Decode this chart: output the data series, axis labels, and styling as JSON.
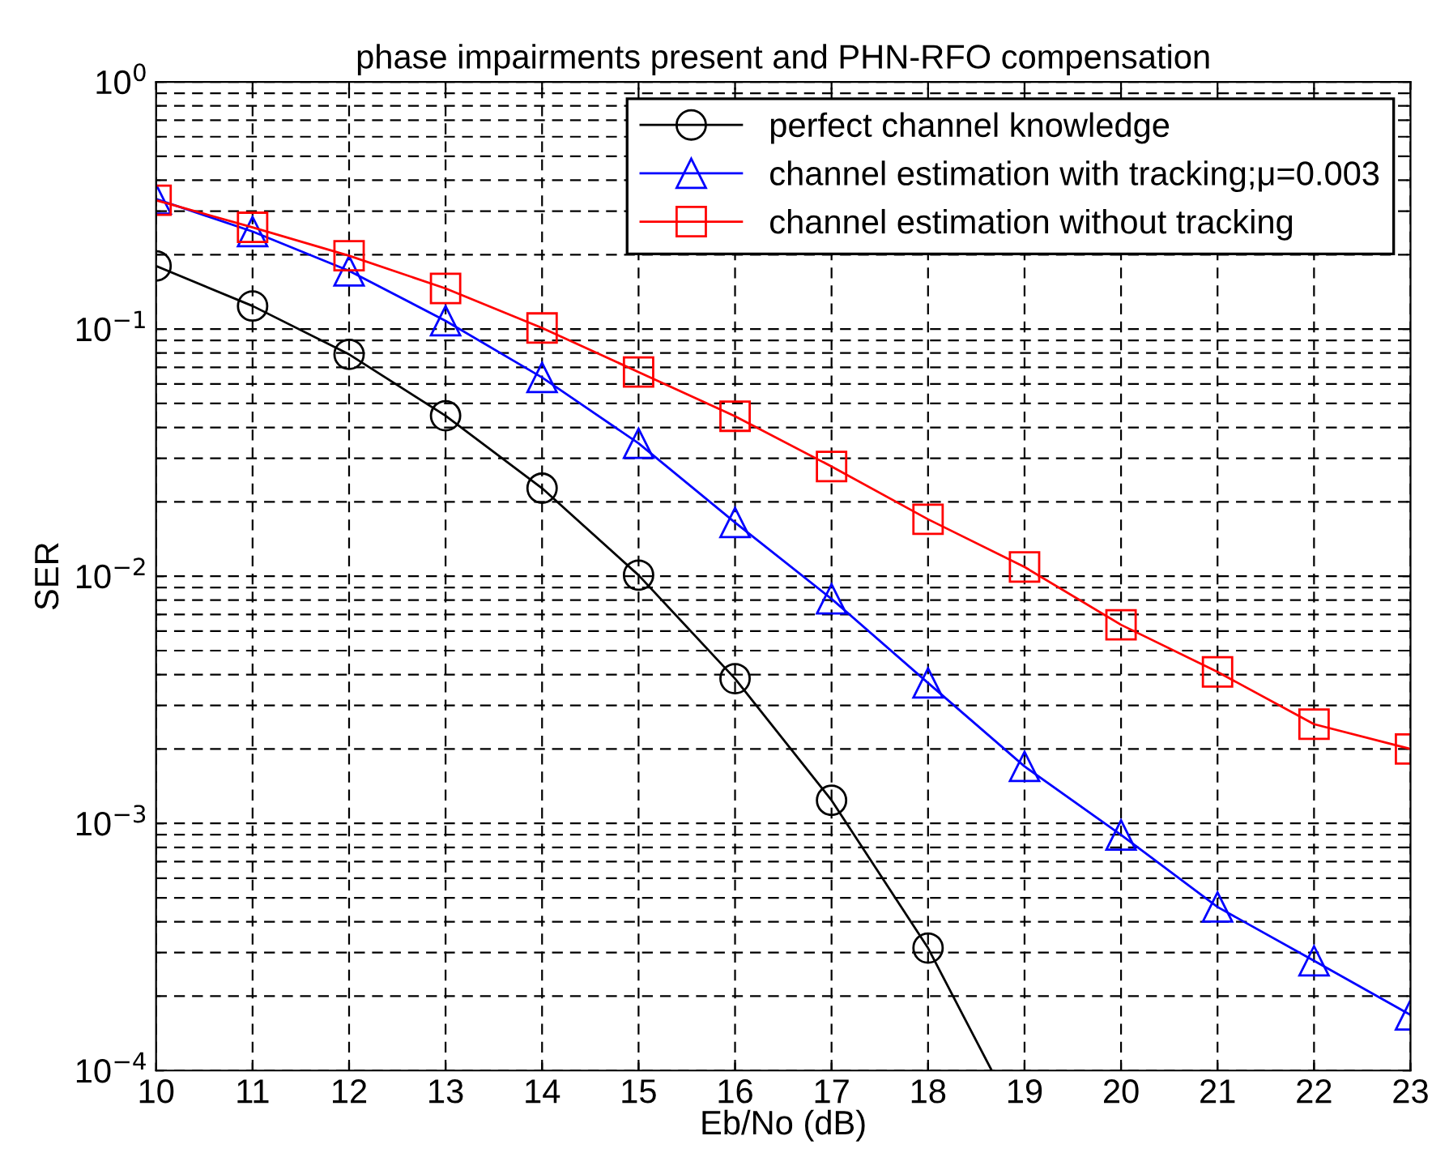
{
  "chart_data": {
    "type": "line",
    "title": "phase impairments present and PHN-RFO compensation",
    "xlabel": "Eb/No (dB)",
    "ylabel": "SER",
    "log": "y",
    "grid": true,
    "legend": "top right",
    "line_style": "solid",
    "xlim": [
      10,
      23
    ],
    "xticks": [
      10,
      11,
      12,
      13,
      14,
      15,
      16,
      17,
      18,
      19,
      20,
      21,
      22,
      23
    ],
    "ylim": [
      0.0001,
      1
    ],
    "yticks": [
      {
        "value": 0.0001,
        "label": "10$^{−4}$"
      },
      {
        "value": 0.001,
        "label": "10$^{−3}$"
      },
      {
        "value": 0.01,
        "label": "10$^{−2}$"
      },
      {
        "value": 0.1,
        "label": "10$^{−1}$"
      },
      {
        "value": 1,
        "label": "10$^{0}$"
      }
    ],
    "series": [
      {
        "name": "perfect channel knowledge",
        "color": "#000000",
        "marker": "circle",
        "x": [
          10,
          11,
          12,
          13,
          14,
          15,
          16,
          17,
          18,
          18.66
        ],
        "values": [
          0.18,
          0.124,
          0.079,
          0.0446,
          0.0227,
          0.0101,
          0.00385,
          0.00124,
          0.000313,
          0.0001
        ]
      },
      {
        "name": "channel estimation with tracking;μ=0.003",
        "color": "#0000ff",
        "marker": "triangle",
        "x": [
          10,
          11,
          12,
          13,
          14,
          15,
          16,
          17,
          18,
          19,
          20,
          21,
          22,
          23
        ],
        "values": [
          0.336,
          0.248,
          0.172,
          0.108,
          0.0637,
          0.0345,
          0.0165,
          0.0081,
          0.0037,
          0.0017,
          0.000898,
          0.000459,
          0.000278,
          0.000168
        ]
      },
      {
        "name": "channel estimation without tracking",
        "color": "#ff0000",
        "marker": "square",
        "x": [
          10,
          11,
          12,
          13,
          14,
          15,
          16,
          17,
          18,
          19,
          20,
          21,
          22,
          23
        ],
        "values": [
          0.332,
          0.258,
          0.198,
          0.146,
          0.101,
          0.067,
          0.0444,
          0.0278,
          0.017,
          0.0109,
          0.00636,
          0.0041,
          0.00252,
          0.002
        ]
      }
    ]
  }
}
